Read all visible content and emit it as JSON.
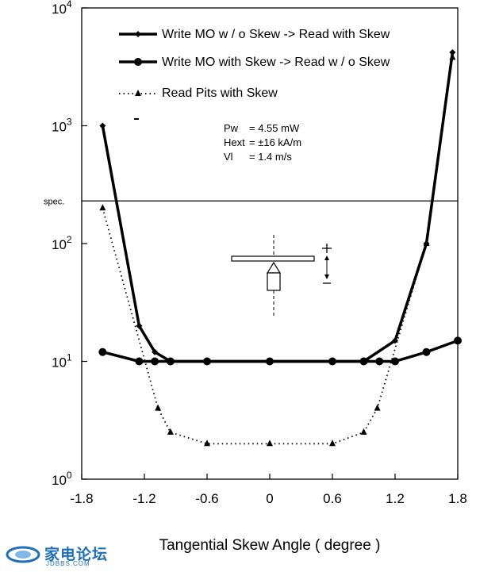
{
  "chart_data": {
    "type": "line",
    "y_scale": "log",
    "xlim": [
      -1.8,
      1.8
    ],
    "ylim": [
      1,
      10000
    ],
    "x_ticks": [
      "-1.8",
      "-1.2",
      "-0.6",
      "0",
      "0.6",
      "1.2",
      "1.8"
    ],
    "x_tick_values": [
      -1.8,
      -1.2,
      -0.6,
      0,
      0.6,
      1.2,
      1.8
    ],
    "y_ticks": [
      {
        "base": "10",
        "exp": "0",
        "value": 1
      },
      {
        "base": "10",
        "exp": "1",
        "value": 10
      },
      {
        "base": "10",
        "exp": "2",
        "value": 100
      },
      {
        "base": "10",
        "exp": "3",
        "value": 1000
      },
      {
        "base": "10",
        "exp": "4",
        "value": 10000
      }
    ],
    "xlabel": "Tangential Skew Angle ( degree )",
    "ylabel": "",
    "grid": false,
    "legend_position": "top",
    "spec_line": {
      "label": "spec.",
      "value": 230
    },
    "parameters": [
      {
        "name": "Pw",
        "value": "= 4.55 mW"
      },
      {
        "name": "Hext",
        "value": "= ±16 kA/m"
      },
      {
        "name": "Vl",
        "value": "= 1.4 m/s"
      }
    ],
    "series": [
      {
        "name": "Write MO w / o Skew -> Read with Skew",
        "style": "solid-diamond",
        "color": "#000000",
        "points": [
          [
            -1.6,
            1000
          ],
          [
            -1.25,
            20
          ],
          [
            -1.1,
            12
          ],
          [
            -0.95,
            10
          ],
          [
            -0.6,
            10
          ],
          [
            0,
            10
          ],
          [
            0.6,
            10
          ],
          [
            0.9,
            10
          ],
          [
            1.2,
            15
          ],
          [
            1.5,
            100
          ],
          [
            1.75,
            4200
          ]
        ]
      },
      {
        "name": "Write MO with Skew -> Read w / o Skew",
        "style": "solid-circle",
        "color": "#000000",
        "points": [
          [
            -1.6,
            12
          ],
          [
            -1.25,
            10
          ],
          [
            -1.1,
            10
          ],
          [
            -0.95,
            10
          ],
          [
            -0.6,
            10
          ],
          [
            0,
            10
          ],
          [
            0.6,
            10
          ],
          [
            0.9,
            10
          ],
          [
            1.05,
            10
          ],
          [
            1.2,
            10
          ],
          [
            1.5,
            12
          ],
          [
            1.8,
            15
          ]
        ]
      },
      {
        "name": "Read Pits with Skew",
        "style": "dotted-triangle",
        "color": "#000000",
        "points": [
          [
            -1.6,
            200
          ],
          [
            -1.07,
            4
          ],
          [
            -0.95,
            2.5
          ],
          [
            -0.6,
            2
          ],
          [
            0,
            2
          ],
          [
            0.6,
            2
          ],
          [
            0.9,
            2.5
          ],
          [
            1.03,
            4
          ],
          [
            1.5,
            100
          ],
          [
            1.75,
            3800
          ]
        ]
      }
    ]
  },
  "watermark": {
    "text": "家电论坛",
    "sub": "JDBBS.COM"
  }
}
